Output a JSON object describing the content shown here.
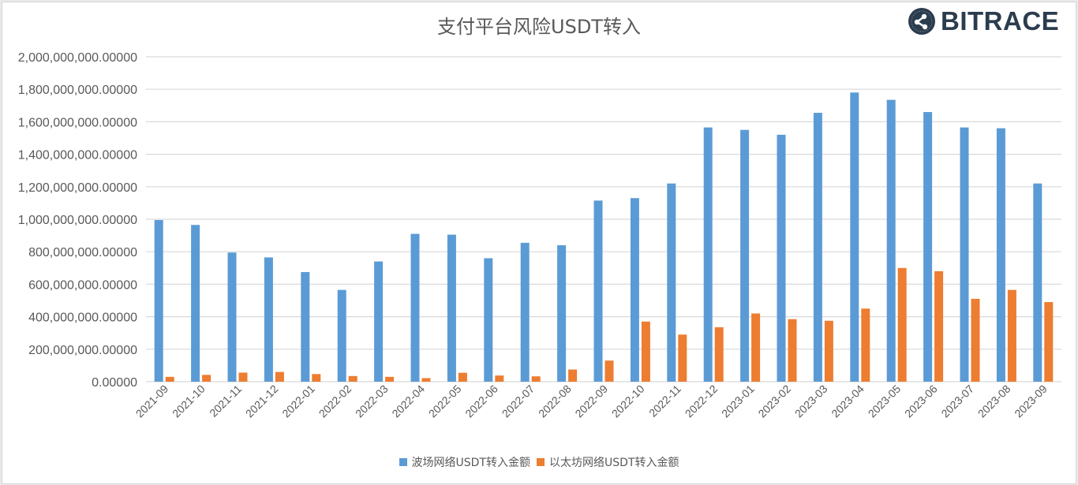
{
  "header": {
    "title": "支付平台风险USDT转入",
    "logo_text": "BITRACE"
  },
  "colors": {
    "series_tron": "#5b9bd5",
    "series_eth": "#ed7d31",
    "grid": "#d9d9d9",
    "axis_text": "#595959"
  },
  "legend": {
    "items": [
      {
        "label": "波场网络USDT转入金额",
        "color": "#5b9bd5"
      },
      {
        "label": "以太坊网络USDT转入金额",
        "color": "#ed7d31"
      }
    ]
  },
  "chart_data": {
    "type": "bar",
    "title": "支付平台风险USDT转入",
    "xlabel": "",
    "ylabel": "",
    "ylim": [
      0,
      2000000000
    ],
    "grid": true,
    "legend_position": "bottom",
    "y_ticks": [
      "0.00000",
      "200,000,000.00000",
      "400,000,000.00000",
      "600,000,000.00000",
      "800,000,000.00000",
      "1,000,000,000.00000",
      "1,200,000,000.00000",
      "1,400,000,000.00000",
      "1,600,000,000.00000",
      "1,800,000,000.00000",
      "2,000,000,000.00000"
    ],
    "categories": [
      "2021-09",
      "2021-10",
      "2021-11",
      "2021-12",
      "2022-01",
      "2022-02",
      "2022-03",
      "2022-04",
      "2022-05",
      "2022-06",
      "2022-07",
      "2022-08",
      "2022-09",
      "2022-10",
      "2022-11",
      "2022-12",
      "2023-01",
      "2023-02",
      "2023-03",
      "2023-04",
      "2023-05",
      "2023-06",
      "2023-07",
      "2023-08",
      "2023-09"
    ],
    "series": [
      {
        "name": "波场网络USDT转入金额",
        "color": "#5b9bd5",
        "values": [
          995000000,
          965000000,
          795000000,
          765000000,
          675000000,
          565000000,
          740000000,
          910000000,
          905000000,
          760000000,
          855000000,
          840000000,
          1115000000,
          1130000000,
          1220000000,
          1565000000,
          1550000000,
          1520000000,
          1655000000,
          1780000000,
          1735000000,
          1660000000,
          1565000000,
          1560000000,
          1220000000
        ]
      },
      {
        "name": "以太坊网络USDT转入金额",
        "color": "#ed7d31",
        "values": [
          30000000,
          42000000,
          56000000,
          60000000,
          47000000,
          35000000,
          30000000,
          22000000,
          55000000,
          38000000,
          33000000,
          75000000,
          130000000,
          370000000,
          290000000,
          335000000,
          420000000,
          385000000,
          375000000,
          450000000,
          700000000,
          680000000,
          510000000,
          565000000,
          490000000
        ]
      }
    ]
  }
}
